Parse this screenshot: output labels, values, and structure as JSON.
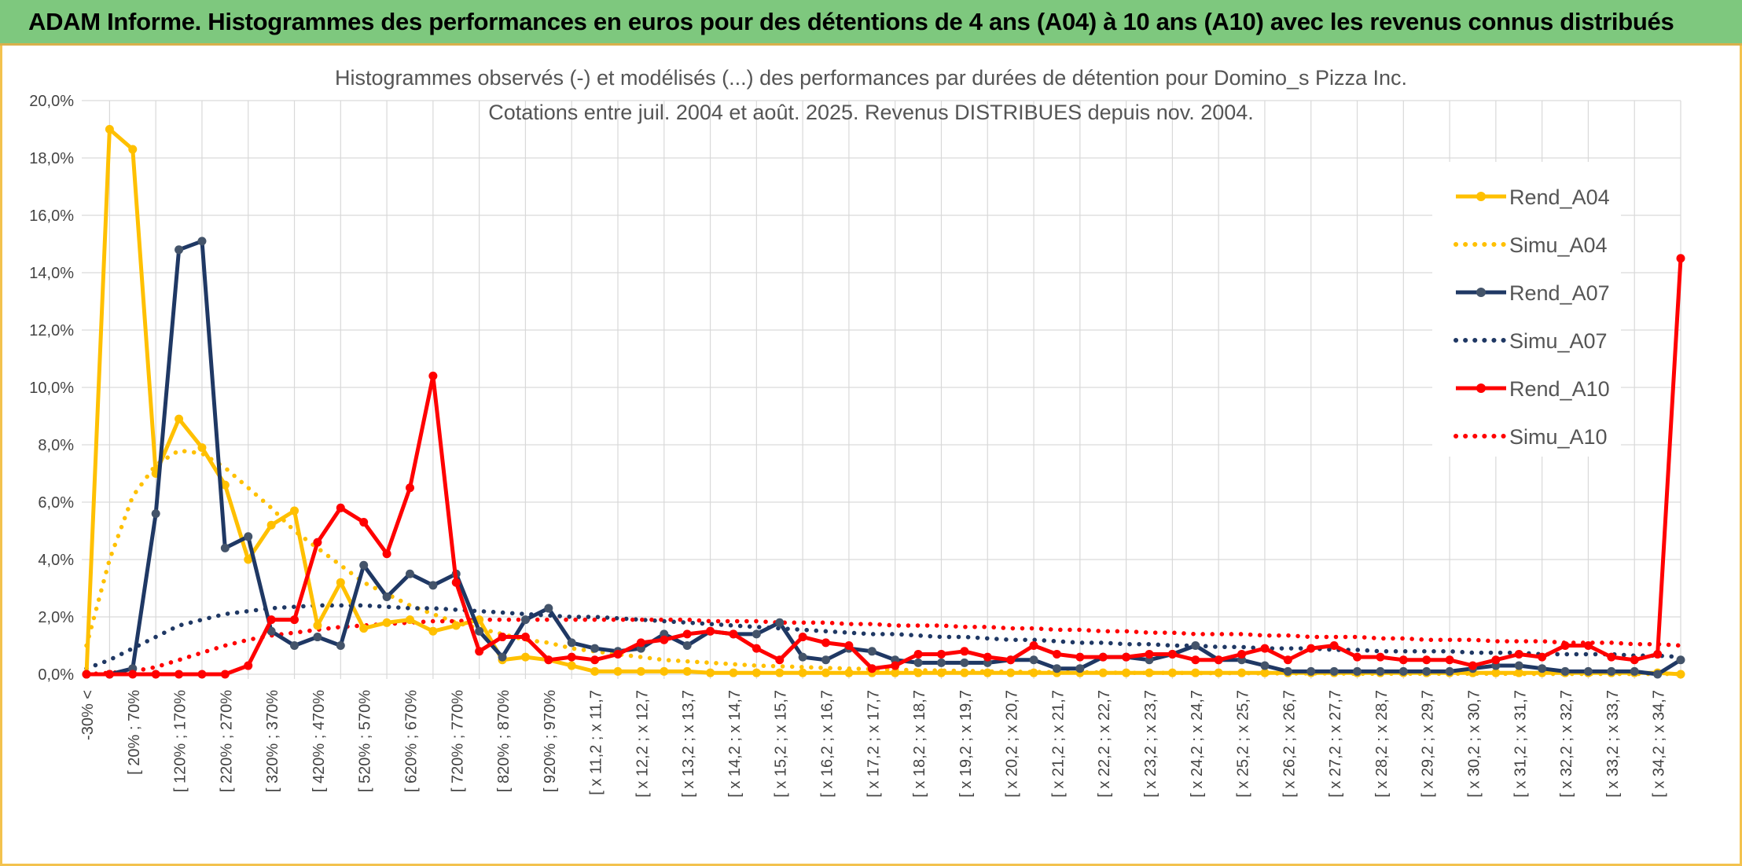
{
  "banner": {
    "title": "ADAM Informe. Histogrammes des performances en euros pour des détentions de 4 ans (A04) à 10 ans (A10) avec les revenus connus distribués"
  },
  "chart_data": {
    "type": "line",
    "title": "Histogrammes observés (-) et modélisés (...) des performances par durées de détention pour Domino_s Pizza Inc.",
    "subtitle": "Cotations entre juil. 2004 et août. 2025. Revenus DISTRIBUES depuis nov. 2004.",
    "ylim": [
      0,
      20
    ],
    "y_ticks": [
      "0,0%",
      "2,0%",
      "4,0%",
      "6,0%",
      "8,0%",
      "10,0%",
      "12,0%",
      "14,0%",
      "16,0%",
      "18,0%",
      "20,0%"
    ],
    "grid": true,
    "legend_position": "right",
    "x_count": 70,
    "x_tick_labels": [
      {
        "i": 0,
        "label": "-30% <"
      },
      {
        "i": 2,
        "label": "[ 20% ; 70%"
      },
      {
        "i": 4,
        "label": "[ 120% ; 170%"
      },
      {
        "i": 6,
        "label": "[ 220% ; 270%"
      },
      {
        "i": 8,
        "label": "[ 320% ; 370%"
      },
      {
        "i": 10,
        "label": "[ 420% ; 470%"
      },
      {
        "i": 12,
        "label": "[ 520% ; 570%"
      },
      {
        "i": 14,
        "label": "[ 620% ; 670%"
      },
      {
        "i": 16,
        "label": "[ 720% ; 770%"
      },
      {
        "i": 18,
        "label": "[ 820% ; 870%"
      },
      {
        "i": 20,
        "label": "[ 920% ; 970%"
      },
      {
        "i": 22,
        "label": "[ x 11,2 ; x 11,7"
      },
      {
        "i": 24,
        "label": "[ x 12,2 ; x 12,7"
      },
      {
        "i": 26,
        "label": "[ x 13,2 ; x 13,7"
      },
      {
        "i": 28,
        "label": "[ x 14,2 ; x 14,7"
      },
      {
        "i": 30,
        "label": "[ x 15,2 ; x 15,7"
      },
      {
        "i": 32,
        "label": "[ x 16,2 ; x 16,7"
      },
      {
        "i": 34,
        "label": "[ x 17,2 ; x 17,7"
      },
      {
        "i": 36,
        "label": "[ x 18,2 ; x 18,7"
      },
      {
        "i": 38,
        "label": "[ x 19,2 ; x 19,7"
      },
      {
        "i": 40,
        "label": "[ x 20,2 ; x 20,7"
      },
      {
        "i": 42,
        "label": "[ x 21,2 ; x 21,7"
      },
      {
        "i": 44,
        "label": "[ x 22,2 ; x 22,7"
      },
      {
        "i": 46,
        "label": "[ x 23,2 ; x 23,7"
      },
      {
        "i": 48,
        "label": "[ x 24,2 ; x 24,7"
      },
      {
        "i": 50,
        "label": "[ x 25,2 ; x 25,7"
      },
      {
        "i": 52,
        "label": "[ x 26,2 ; x 26,7"
      },
      {
        "i": 54,
        "label": "[ x 27,2 ; x 27,7"
      },
      {
        "i": 56,
        "label": "[ x 28,2 ; x 28,7"
      },
      {
        "i": 58,
        "label": "[ x 29,2 ; x 29,7"
      },
      {
        "i": 60,
        "label": "[ x 30,2 ; x 30,7"
      },
      {
        "i": 62,
        "label": "[ x 31,2 ; x 31,7"
      },
      {
        "i": 64,
        "label": "[ x 32,2 ; x 32,7"
      },
      {
        "i": 66,
        "label": "[ x 33,2 ; x 33,7"
      },
      {
        "i": 68,
        "label": "[ x 34,2 ; x 34,7"
      }
    ],
    "series": [
      {
        "name": "Rend_A04",
        "color": "#FFC000",
        "style": "solid",
        "values": [
          0,
          19.0,
          18.3,
          7.0,
          8.9,
          7.9,
          6.6,
          4.0,
          5.2,
          5.7,
          1.7,
          3.2,
          1.6,
          1.8,
          1.9,
          1.5,
          1.7,
          1.9,
          0.5,
          0.6,
          0.5,
          0.3,
          0.1,
          0.1,
          0.1,
          0.1,
          0.1,
          0.05,
          0.05,
          0.05,
          0.05,
          0.05,
          0.05,
          0.05,
          0.05,
          0.05,
          0.05,
          0.05,
          0.05,
          0.05,
          0.05,
          0.05,
          0.05,
          0.05,
          0.05,
          0.05,
          0.05,
          0.05,
          0.05,
          0.05,
          0.05,
          0.05,
          0.05,
          0.05,
          0.05,
          0.05,
          0.05,
          0.05,
          0.05,
          0.05,
          0.05,
          0.05,
          0.05,
          0.05,
          0.05,
          0.05,
          0.05,
          0.05,
          0.05,
          0.0
        ]
      },
      {
        "name": "Simu_A04",
        "color": "#FFC000",
        "style": "dotted",
        "values": [
          1.0,
          4.0,
          6.2,
          7.3,
          7.8,
          7.7,
          7.2,
          6.5,
          5.8,
          5.0,
          4.4,
          3.8,
          3.2,
          2.8,
          2.4,
          2.1,
          1.8,
          1.6,
          1.4,
          1.2,
          1.1,
          0.9,
          0.8,
          0.7,
          0.6,
          0.5,
          0.45,
          0.4,
          0.35,
          0.3,
          0.28,
          0.25,
          0.22,
          0.2,
          0.18,
          0.16,
          0.14,
          0.13,
          0.12,
          0.1,
          0.09,
          0.08,
          0.07,
          0.07,
          0.06,
          0.05,
          0.05,
          0.05,
          0.04,
          0.04,
          0.04,
          0.03,
          0.03,
          0.03,
          0.03,
          0.02,
          0.02,
          0.02,
          0.02,
          0.02,
          0.02,
          0.02,
          0.01,
          0.01,
          0.01,
          0.01,
          0.01,
          0.01,
          0.01,
          0.01
        ]
      },
      {
        "name": "Rend_A07",
        "color": "#1F3864",
        "style": "solid",
        "values": [
          0,
          0,
          0.2,
          5.6,
          14.8,
          15.1,
          4.4,
          4.8,
          1.5,
          1.0,
          1.3,
          1.0,
          3.8,
          2.7,
          3.5,
          3.1,
          3.5,
          1.5,
          0.6,
          1.9,
          2.3,
          1.1,
          0.9,
          0.8,
          0.9,
          1.4,
          1.0,
          1.5,
          1.4,
          1.4,
          1.8,
          0.6,
          0.5,
          0.9,
          0.8,
          0.5,
          0.4,
          0.4,
          0.4,
          0.4,
          0.5,
          0.5,
          0.2,
          0.2,
          0.6,
          0.6,
          0.5,
          0.7,
          1.0,
          0.5,
          0.5,
          0.3,
          0.1,
          0.1,
          0.1,
          0.1,
          0.1,
          0.1,
          0.1,
          0.1,
          0.2,
          0.3,
          0.3,
          0.2,
          0.1,
          0.1,
          0.1,
          0.1,
          0.0,
          0.5
        ]
      },
      {
        "name": "Simu_A07",
        "color": "#1F3864",
        "style": "dotted",
        "values": [
          0.2,
          0.5,
          0.9,
          1.3,
          1.7,
          1.9,
          2.1,
          2.2,
          2.3,
          2.35,
          2.4,
          2.4,
          2.4,
          2.35,
          2.3,
          2.3,
          2.25,
          2.2,
          2.15,
          2.1,
          2.05,
          2.0,
          2.0,
          1.95,
          1.9,
          1.85,
          1.8,
          1.75,
          1.7,
          1.65,
          1.6,
          1.55,
          1.5,
          1.45,
          1.4,
          1.4,
          1.35,
          1.3,
          1.3,
          1.25,
          1.2,
          1.2,
          1.15,
          1.1,
          1.1,
          1.05,
          1.05,
          1.0,
          1.0,
          0.95,
          0.95,
          0.9,
          0.9,
          0.9,
          0.85,
          0.85,
          0.8,
          0.8,
          0.8,
          0.8,
          0.75,
          0.75,
          0.75,
          0.7,
          0.7,
          0.7,
          0.7,
          0.65,
          0.65,
          0.6
        ]
      },
      {
        "name": "Rend_A10",
        "color": "#FF0000",
        "style": "solid",
        "values": [
          0,
          0,
          0,
          0,
          0,
          0,
          0,
          0.3,
          1.9,
          1.9,
          4.6,
          5.8,
          5.3,
          4.2,
          6.5,
          10.4,
          3.2,
          0.8,
          1.3,
          1.3,
          0.5,
          0.6,
          0.5,
          0.7,
          1.1,
          1.2,
          1.4,
          1.5,
          1.4,
          0.9,
          0.5,
          1.3,
          1.1,
          1.0,
          0.2,
          0.3,
          0.7,
          0.7,
          0.8,
          0.6,
          0.5,
          1.0,
          0.7,
          0.6,
          0.6,
          0.6,
          0.7,
          0.7,
          0.5,
          0.5,
          0.7,
          0.9,
          0.5,
          0.9,
          1.0,
          0.6,
          0.6,
          0.5,
          0.5,
          0.5,
          0.3,
          0.5,
          0.7,
          0.6,
          1.0,
          1.0,
          0.6,
          0.5,
          0.7,
          14.5
        ]
      },
      {
        "name": "Simu_A10",
        "color": "#FF0000",
        "style": "dotted",
        "values": [
          0.0,
          0.05,
          0.1,
          0.25,
          0.5,
          0.75,
          1.0,
          1.2,
          1.35,
          1.45,
          1.55,
          1.65,
          1.7,
          1.75,
          1.8,
          1.85,
          1.85,
          1.9,
          1.9,
          1.9,
          1.9,
          1.9,
          1.9,
          1.9,
          1.9,
          1.9,
          1.9,
          1.85,
          1.85,
          1.85,
          1.8,
          1.8,
          1.8,
          1.75,
          1.75,
          1.7,
          1.7,
          1.7,
          1.65,
          1.65,
          1.6,
          1.6,
          1.55,
          1.55,
          1.5,
          1.5,
          1.45,
          1.45,
          1.4,
          1.4,
          1.4,
          1.35,
          1.35,
          1.3,
          1.3,
          1.3,
          1.25,
          1.25,
          1.2,
          1.2,
          1.2,
          1.15,
          1.15,
          1.15,
          1.1,
          1.1,
          1.1,
          1.05,
          1.05,
          1.0
        ]
      }
    ]
  }
}
